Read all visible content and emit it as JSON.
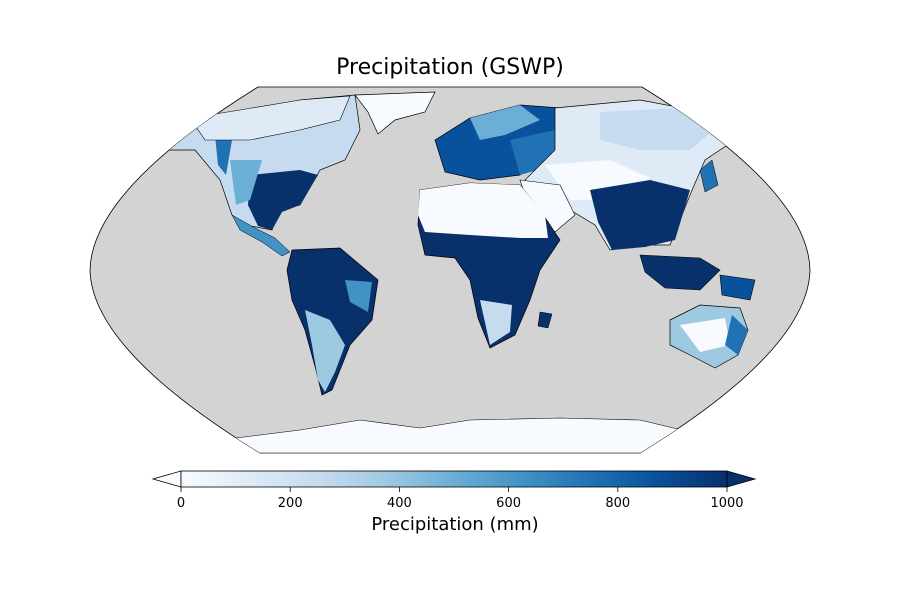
{
  "title": "Precipitation (GSWP)",
  "colorbar": {
    "label": "Precipitation (mm)",
    "ticks": [
      "0",
      "200",
      "400",
      "600",
      "800",
      "1000"
    ],
    "tick_values": [
      0,
      200,
      400,
      600,
      800,
      1000
    ],
    "range": [
      0,
      1000
    ],
    "extend": "both",
    "colormap": "Blues",
    "colors": [
      "#f7fbff",
      "#deebf7",
      "#c6dbef",
      "#9ecae1",
      "#6baed6",
      "#4292c6",
      "#2171b5",
      "#08519c",
      "#08306b"
    ]
  },
  "map": {
    "projection": "Robinson",
    "ocean_color": "#d3d3d3",
    "coastline_color": "#000000"
  }
}
